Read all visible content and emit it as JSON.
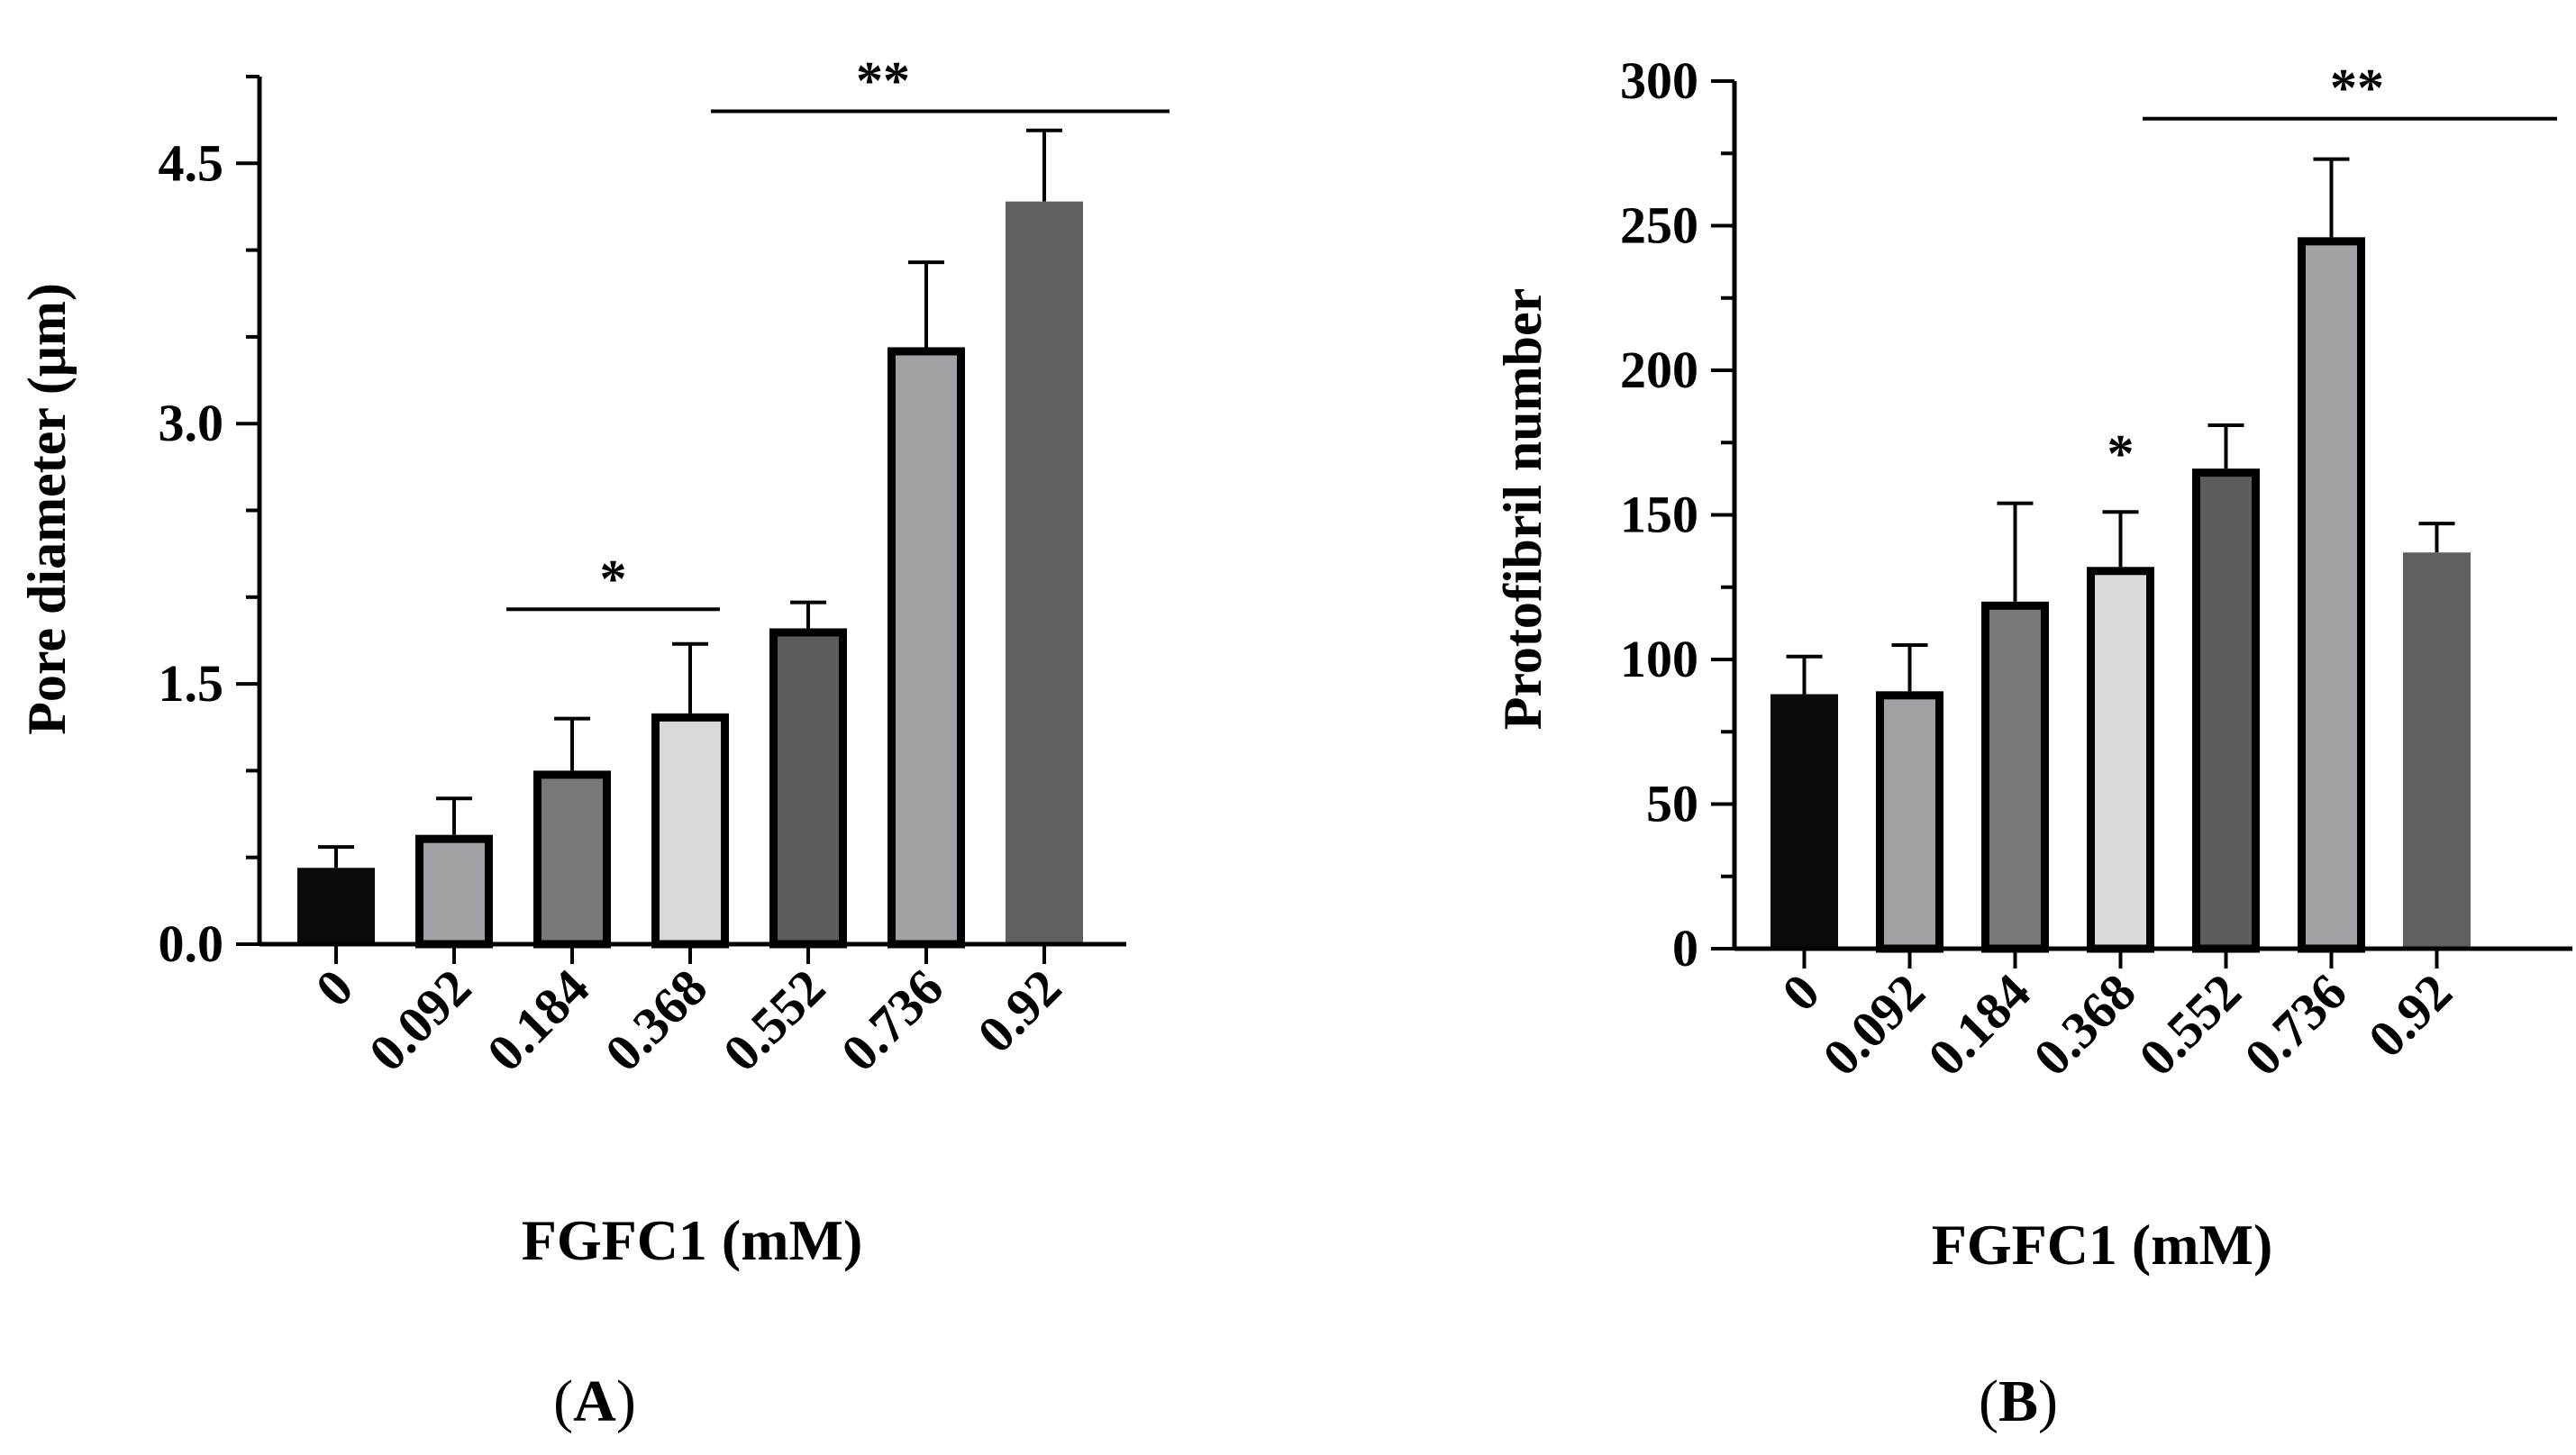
{
  "colors": {
    "axis": "#000000",
    "bar_black": "#0a0a0a",
    "bar_mid_gray": "#a0a0a5",
    "bar_dark_gray": "#787878",
    "bar_light_gray": "#d9d9d9",
    "bar_darker_gray": "#5c5c5c",
    "bar_charcoal": "#5f5f5f"
  },
  "chart_data": [
    {
      "panel_label": "A",
      "panel_caption": {
        "open": "(",
        "letter": "A",
        "close": ")"
      },
      "type": "bar",
      "xlabel": "FGFC1 (mM)",
      "ylabel": "Pore diameter  (μm)",
      "ylim": [
        0,
        5
      ],
      "yticks": [
        0,
        1.5,
        3,
        4.5
      ],
      "ytick_labels": [
        "0.0",
        "1.5",
        "3.0",
        "4.5"
      ],
      "minor_tick_step": 0.5,
      "categories": [
        "0",
        "0.092",
        "0.184",
        "0.368",
        "0.552",
        "0.736",
        "0.92"
      ],
      "values": [
        0.44,
        0.63,
        1.0,
        1.33,
        1.82,
        3.44,
        4.28
      ],
      "errors": [
        0.12,
        0.21,
        0.3,
        0.4,
        0.15,
        0.49,
        0.41
      ],
      "bar_fills": [
        "#0a0a0a",
        "#a0a0a5",
        "#787878",
        "#d9d9d9",
        "#5c5c5c",
        "#a0a0a5",
        "#5f5f5f"
      ],
      "bar_outlined": [
        false,
        true,
        true,
        true,
        true,
        true,
        false
      ],
      "significance": [
        {
          "label": "*",
          "from_index": 2,
          "to_index": 3,
          "y": 1.93
        },
        {
          "label": "**",
          "from_index": 4,
          "to_index": 6,
          "y": 4.8
        }
      ]
    },
    {
      "panel_label": "B",
      "panel_caption": {
        "open": "(",
        "letter": "B",
        "close": ")"
      },
      "type": "bar",
      "xlabel": "FGFC1 (mM)",
      "ylabel": "Protofibril number",
      "ylim": [
        0,
        300
      ],
      "yticks": [
        0,
        50,
        100,
        150,
        200,
        250,
        300
      ],
      "ytick_labels": [
        "0",
        "50",
        "100",
        "150",
        "200",
        "250",
        "300"
      ],
      "minor_tick_step": 25,
      "categories": [
        "0",
        "0.092",
        "0.184",
        "0.368",
        "0.552",
        "0.736",
        "0.92"
      ],
      "values": [
        88,
        89,
        120,
        132,
        166,
        246,
        137
      ],
      "errors": [
        13,
        16,
        34,
        19,
        15,
        27,
        10
      ],
      "bar_fills": [
        "#0a0a0a",
        "#a0a0a5",
        "#787878",
        "#d9d9d9",
        "#5c5c5c",
        "#a0a0a5",
        "#5f5f5f"
      ],
      "bar_outlined": [
        false,
        true,
        true,
        true,
        true,
        true,
        false
      ],
      "significance": [
        {
          "label": "*",
          "from_index": 3,
          "to_index": 3,
          "y": 165
        },
        {
          "label": "**",
          "from_index": 4,
          "to_index": 6,
          "y": 287
        }
      ]
    }
  ]
}
